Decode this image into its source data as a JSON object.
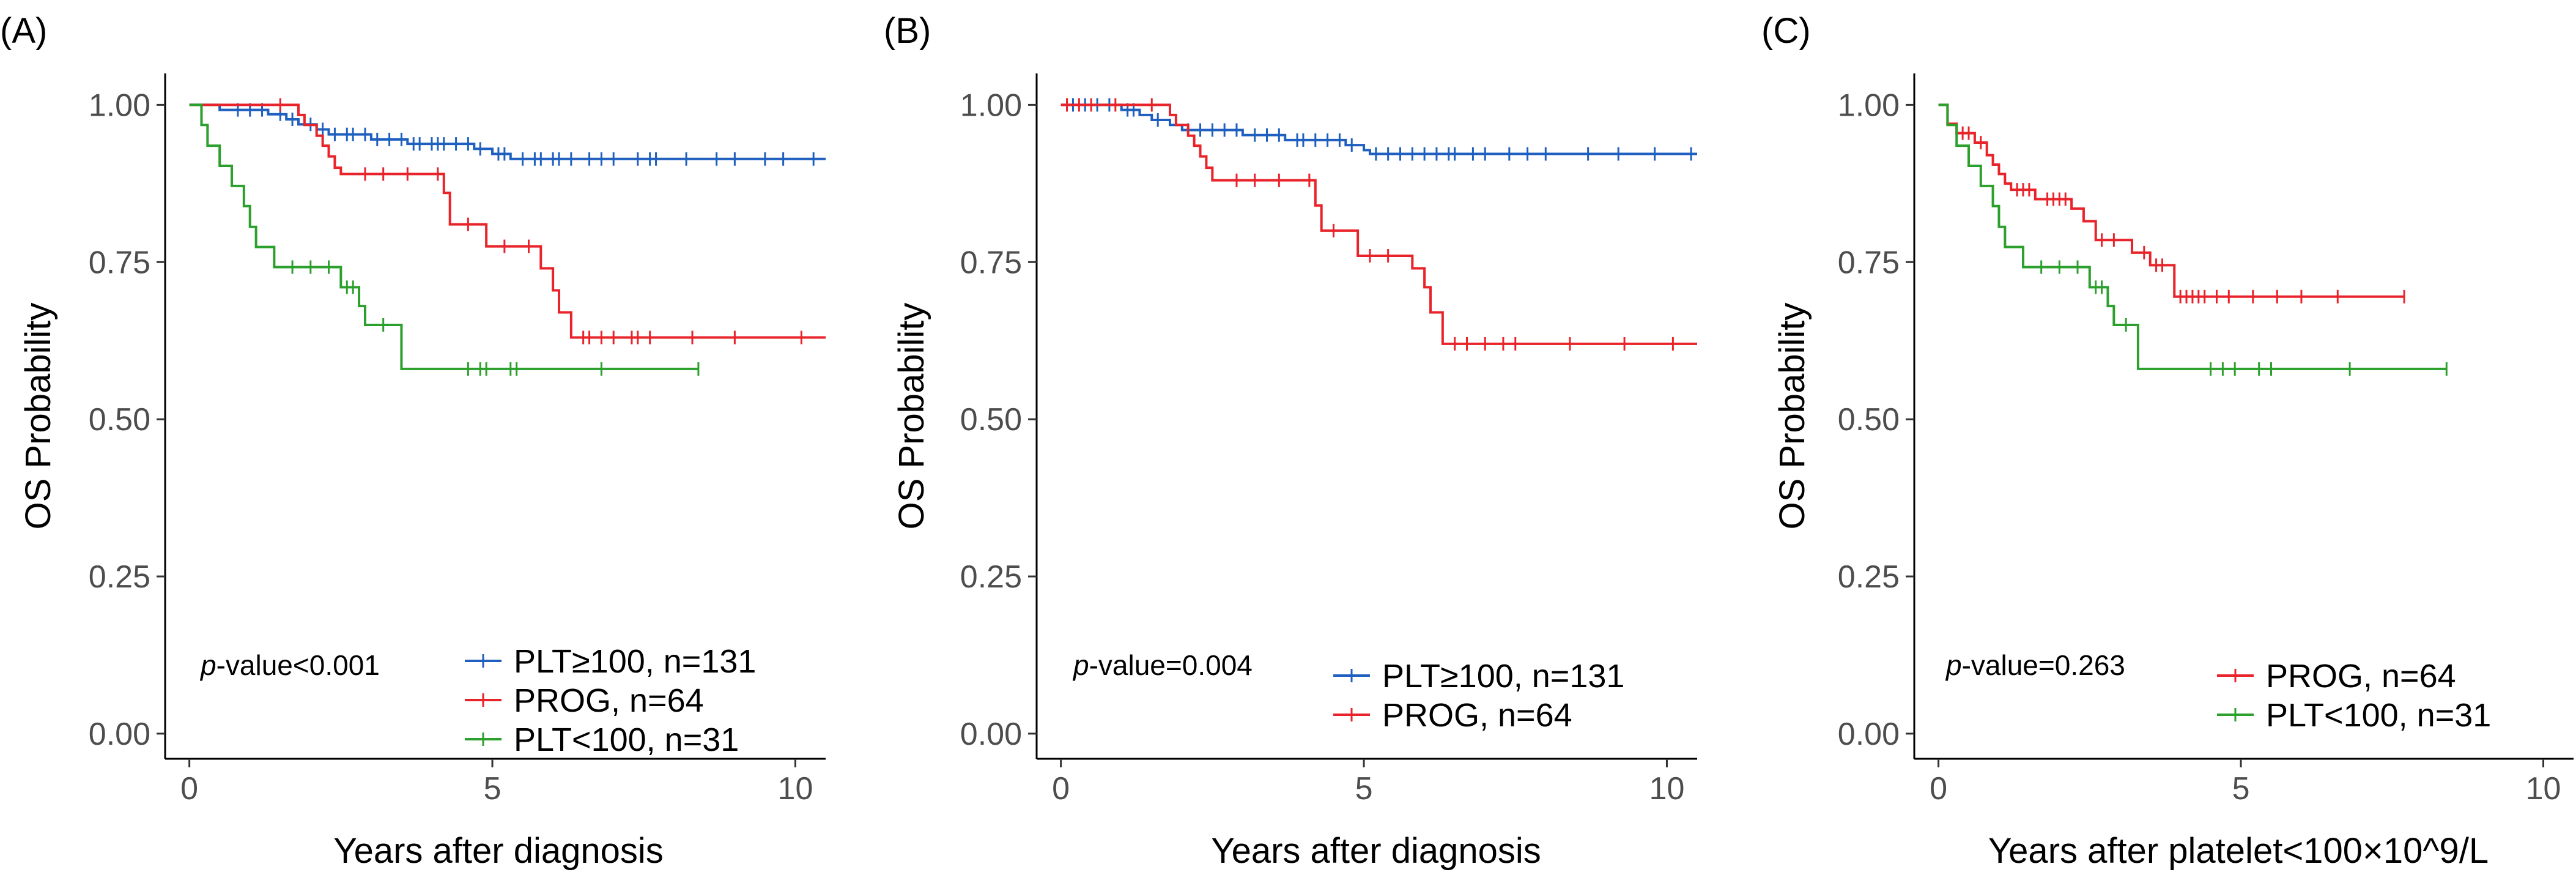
{
  "chart_data": [
    {
      "panel": "(A)",
      "type": "line",
      "subtype": "kaplan-meier",
      "xlabel": "Years after diagnosis",
      "ylabel": "OS Probability",
      "xlim": [
        -0.4,
        10.5
      ],
      "ylim": [
        -0.04,
        1.05
      ],
      "xticks": [
        0,
        5,
        10
      ],
      "yticks": [
        0.0,
        0.25,
        0.5,
        0.75,
        1.0
      ],
      "ytick_labels": [
        "0.00",
        "0.25",
        "0.50",
        "0.75",
        "1.00"
      ],
      "pvalue_prefix": "p",
      "pvalue_text": "-value<0.001",
      "legend": [
        "PLT≥100, n=131",
        "PROG, n=64",
        "PLT<100, n=31"
      ],
      "series": [
        {
          "name": "PLT≥100, n=131",
          "color": "#1f5fbf",
          "steps": [
            [
              0,
              1.0
            ],
            [
              0.5,
              0.992
            ],
            [
              1.3,
              0.985
            ],
            [
              1.6,
              0.977
            ],
            [
              1.8,
              0.969
            ],
            [
              2.1,
              0.961
            ],
            [
              2.3,
              0.953
            ],
            [
              3.0,
              0.945
            ],
            [
              3.6,
              0.938
            ],
            [
              4.7,
              0.93
            ],
            [
              5.0,
              0.922
            ],
            [
              5.3,
              0.914
            ],
            [
              10.5,
              0.914
            ]
          ],
          "censor": [
            0.8,
            1.0,
            1.2,
            1.5,
            1.7,
            2.0,
            2.2,
            2.4,
            2.6,
            2.7,
            2.9,
            3.1,
            3.3,
            3.5,
            3.7,
            3.8,
            4.0,
            4.1,
            4.2,
            4.4,
            4.6,
            4.8,
            5.1,
            5.2,
            5.5,
            5.7,
            5.8,
            6.0,
            6.1,
            6.3,
            6.6,
            6.8,
            7.0,
            7.4,
            7.6,
            7.7,
            8.2,
            8.7,
            9.0,
            9.5,
            9.8,
            10.3
          ]
        },
        {
          "name": "PROG, n=64",
          "color": "#e8232a",
          "steps": [
            [
              0,
              1.0
            ],
            [
              1.8,
              0.984
            ],
            [
              1.9,
              0.968
            ],
            [
              2.1,
              0.951
            ],
            [
              2.2,
              0.935
            ],
            [
              2.3,
              0.918
            ],
            [
              2.4,
              0.9
            ],
            [
              2.5,
              0.89
            ],
            [
              4.2,
              0.86
            ],
            [
              4.3,
              0.81
            ],
            [
              4.9,
              0.775
            ],
            [
              5.8,
              0.74
            ],
            [
              6.0,
              0.705
            ],
            [
              6.1,
              0.67
            ],
            [
              6.3,
              0.63
            ],
            [
              10.5,
              0.63
            ]
          ],
          "censor": [
            1.5,
            2.9,
            3.2,
            3.6,
            4.1,
            4.6,
            5.2,
            5.6,
            6.5,
            6.6,
            6.8,
            7.0,
            7.3,
            7.4,
            7.6,
            8.3,
            9.0,
            10.1
          ]
        },
        {
          "name": "PLT<100, n=31",
          "color": "#2ca02c",
          "steps": [
            [
              0,
              1.0
            ],
            [
              0.2,
              0.968
            ],
            [
              0.3,
              0.935
            ],
            [
              0.5,
              0.903
            ],
            [
              0.7,
              0.871
            ],
            [
              0.9,
              0.839
            ],
            [
              1.0,
              0.806
            ],
            [
              1.1,
              0.774
            ],
            [
              1.4,
              0.742
            ],
            [
              2.5,
              0.71
            ],
            [
              2.8,
              0.68
            ],
            [
              2.9,
              0.65
            ],
            [
              3.5,
              0.58
            ],
            [
              8.4,
              0.58
            ]
          ],
          "censor": [
            1.7,
            2.0,
            2.3,
            2.6,
            2.7,
            3.2,
            4.6,
            4.8,
            4.9,
            5.3,
            5.4,
            6.8,
            8.4
          ]
        }
      ]
    },
    {
      "panel": "(B)",
      "type": "line",
      "subtype": "kaplan-meier",
      "xlabel": "Years after diagnosis",
      "ylabel": "OS Probability",
      "xlim": [
        -0.4,
        10.5
      ],
      "ylim": [
        -0.04,
        1.05
      ],
      "xticks": [
        0,
        5,
        10
      ],
      "yticks": [
        0.0,
        0.25,
        0.5,
        0.75,
        1.0
      ],
      "ytick_labels": [
        "0.00",
        "0.25",
        "0.50",
        "0.75",
        "1.00"
      ],
      "pvalue_prefix": "p",
      "pvalue_text": "-value=0.004",
      "legend": [
        "PLT≥100, n=131",
        "PROG, n=64"
      ],
      "series": [
        {
          "name": "PLT≥100, n=131",
          "color": "#1f5fbf",
          "steps": [
            [
              0,
              1.0
            ],
            [
              1.0,
              0.992
            ],
            [
              1.3,
              0.984
            ],
            [
              1.5,
              0.976
            ],
            [
              1.8,
              0.968
            ],
            [
              2.0,
              0.96
            ],
            [
              3.0,
              0.952
            ],
            [
              3.7,
              0.944
            ],
            [
              4.7,
              0.936
            ],
            [
              5.0,
              0.928
            ],
            [
              5.1,
              0.922
            ],
            [
              10.5,
              0.922
            ]
          ],
          "censor": [
            0.2,
            0.4,
            0.6,
            0.8,
            1.1,
            1.2,
            1.6,
            2.1,
            2.3,
            2.5,
            2.7,
            2.9,
            3.2,
            3.4,
            3.6,
            3.9,
            4.0,
            4.2,
            4.4,
            4.6,
            4.8,
            5.2,
            5.4,
            5.6,
            5.8,
            6.0,
            6.2,
            6.4,
            6.5,
            6.8,
            7.0,
            7.4,
            7.7,
            8.0,
            8.7,
            9.2,
            9.8,
            10.4
          ]
        },
        {
          "name": "PROG, n=64",
          "color": "#e8232a",
          "steps": [
            [
              0,
              1.0
            ],
            [
              1.8,
              0.984
            ],
            [
              1.9,
              0.968
            ],
            [
              2.1,
              0.951
            ],
            [
              2.2,
              0.935
            ],
            [
              2.3,
              0.918
            ],
            [
              2.4,
              0.9
            ],
            [
              2.5,
              0.88
            ],
            [
              4.2,
              0.84
            ],
            [
              4.3,
              0.8
            ],
            [
              4.9,
              0.76
            ],
            [
              5.8,
              0.74
            ],
            [
              6.0,
              0.71
            ],
            [
              6.1,
              0.67
            ],
            [
              6.3,
              0.62
            ],
            [
              10.5,
              0.62
            ]
          ],
          "censor": [
            0.1,
            0.3,
            0.5,
            0.9,
            1.5,
            2.9,
            3.2,
            3.6,
            4.1,
            4.5,
            5.1,
            5.4,
            6.5,
            6.7,
            7.0,
            7.3,
            7.5,
            8.4,
            9.3,
            10.1
          ]
        }
      ]
    },
    {
      "panel": "(C)",
      "type": "line",
      "subtype": "kaplan-meier",
      "xlabel": "Years after platelet<100×10^9/L",
      "ylabel": "OS Probability",
      "xlim": [
        -0.4,
        10.5
      ],
      "ylim": [
        -0.04,
        1.05
      ],
      "xticks": [
        0,
        5,
        10
      ],
      "yticks": [
        0.0,
        0.25,
        0.5,
        0.75,
        1.0
      ],
      "ytick_labels": [
        "0.00",
        "0.25",
        "0.50",
        "0.75",
        "1.00"
      ],
      "pvalue_prefix": "p",
      "pvalue_text": "-value=0.263",
      "legend": [
        "PROG, n=64",
        "PLT<100, n=31"
      ],
      "series": [
        {
          "name": "PROG, n=64",
          "color": "#e8232a",
          "steps": [
            [
              0,
              1.0
            ],
            [
              0.15,
              0.97
            ],
            [
              0.3,
              0.955
            ],
            [
              0.6,
              0.94
            ],
            [
              0.8,
              0.92
            ],
            [
              0.9,
              0.905
            ],
            [
              1.0,
              0.89
            ],
            [
              1.1,
              0.875
            ],
            [
              1.2,
              0.865
            ],
            [
              1.6,
              0.85
            ],
            [
              2.2,
              0.835
            ],
            [
              2.4,
              0.815
            ],
            [
              2.6,
              0.785
            ],
            [
              3.2,
              0.765
            ],
            [
              3.5,
              0.745
            ],
            [
              3.9,
              0.695
            ],
            [
              7.7,
              0.695
            ]
          ],
          "censor": [
            0.4,
            0.5,
            0.7,
            1.3,
            1.4,
            1.5,
            1.8,
            1.9,
            2.0,
            2.1,
            2.7,
            2.9,
            3.4,
            3.6,
            3.7,
            4.0,
            4.1,
            4.2,
            4.3,
            4.4,
            4.6,
            4.8,
            5.2,
            5.6,
            6.0,
            6.6,
            7.7
          ]
        },
        {
          "name": "PLT<100, n=31",
          "color": "#2ca02c",
          "steps": [
            [
              0,
              1.0
            ],
            [
              0.15,
              0.968
            ],
            [
              0.3,
              0.935
            ],
            [
              0.5,
              0.903
            ],
            [
              0.7,
              0.871
            ],
            [
              0.9,
              0.839
            ],
            [
              1.0,
              0.806
            ],
            [
              1.1,
              0.774
            ],
            [
              1.4,
              0.742
            ],
            [
              2.5,
              0.71
            ],
            [
              2.8,
              0.68
            ],
            [
              2.9,
              0.65
            ],
            [
              3.3,
              0.58
            ],
            [
              8.4,
              0.58
            ]
          ],
          "censor": [
            1.7,
            2.0,
            2.3,
            2.6,
            2.7,
            3.1,
            4.5,
            4.7,
            4.9,
            5.3,
            5.5,
            6.8,
            8.4
          ]
        }
      ]
    }
  ]
}
